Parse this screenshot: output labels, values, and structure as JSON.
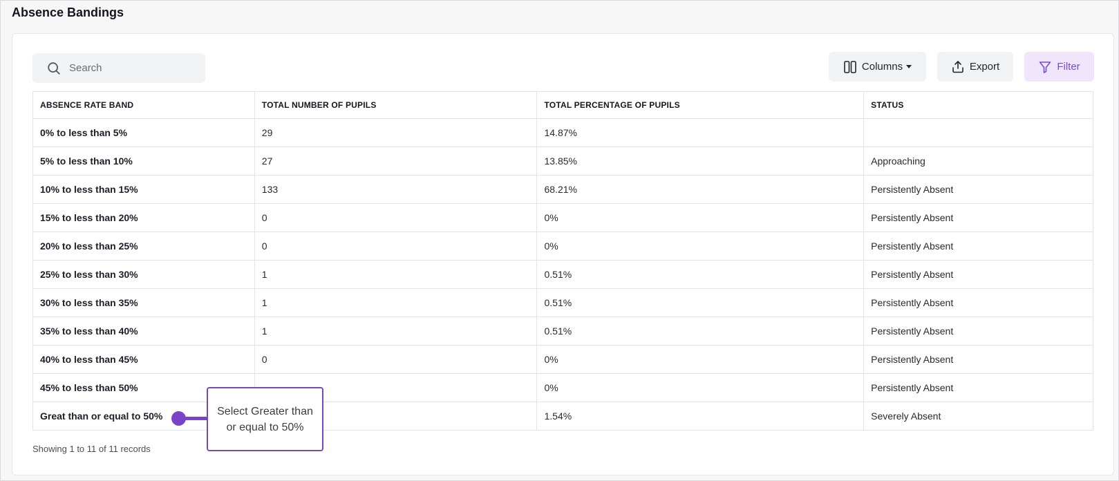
{
  "page": {
    "title": "Absence Bandings"
  },
  "toolbar": {
    "search_placeholder": "Search",
    "columns_label": "Columns",
    "export_label": "Export",
    "filter_label": "Filter"
  },
  "table": {
    "headers": [
      "ABSENCE RATE BAND",
      "TOTAL NUMBER OF PUPILS",
      "TOTAL PERCENTAGE OF PUPILS",
      "STATUS"
    ],
    "rows": [
      {
        "band": "0% to less than 5%",
        "count": "29",
        "percent": "14.87%",
        "status": ""
      },
      {
        "band": "5% to less than 10%",
        "count": "27",
        "percent": "13.85%",
        "status": "Approaching"
      },
      {
        "band": "10% to less than 15%",
        "count": "133",
        "percent": "68.21%",
        "status": "Persistently Absent"
      },
      {
        "band": "15% to less than 20%",
        "count": "0",
        "percent": "0%",
        "status": "Persistently Absent"
      },
      {
        "band": "20% to less than 25%",
        "count": "0",
        "percent": "0%",
        "status": "Persistently Absent"
      },
      {
        "band": "25% to less than 30%",
        "count": "1",
        "percent": "0.51%",
        "status": "Persistently Absent"
      },
      {
        "band": "30% to less than 35%",
        "count": "1",
        "percent": "0.51%",
        "status": "Persistently Absent"
      },
      {
        "band": "35% to less than 40%",
        "count": "1",
        "percent": "0.51%",
        "status": "Persistently Absent"
      },
      {
        "band": "40% to less than 45%",
        "count": "0",
        "percent": "0%",
        "status": "Persistently Absent"
      },
      {
        "band": "45% to less than 50%",
        "count": "",
        "percent": "0%",
        "status": "Persistently Absent"
      },
      {
        "band": "Great than or equal to 50%",
        "count": "",
        "percent": "1.54%",
        "status": "Severely Absent"
      }
    ]
  },
  "footer": {
    "records_text": "Showing 1 to 11 of 11 records"
  },
  "callout": {
    "text": "Select Greater than or equal to 50%"
  },
  "colors": {
    "accent": "#7a44c8",
    "filter_bg": "#efe6fb"
  }
}
